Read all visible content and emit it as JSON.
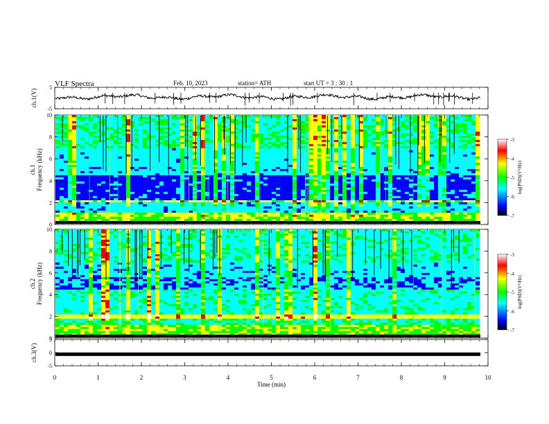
{
  "header": {
    "title": "VLF  Spectra",
    "date": "Feb. 10, 2023",
    "station": "station= ATH",
    "start": "start  UT  =   3  : 30 : 1"
  },
  "chart_data": [
    {
      "type": "line",
      "name": "ch1-waveform",
      "ylabel": "ch.1(V)",
      "ylim": [
        -5,
        5
      ],
      "yticks": [
        "5",
        "-5"
      ],
      "xlim": [
        0,
        10
      ],
      "approx_level": 0.5
    },
    {
      "type": "heatmap",
      "name": "ch1-spectrogram",
      "ylabel": "ch.1 Frequency (kHz)",
      "ylim": [
        0,
        10
      ],
      "yticks": [
        "0",
        "2",
        "4",
        "6",
        "8",
        "10"
      ],
      "xlim": [
        0,
        10
      ],
      "colorbar": {
        "label": "log(PSD)(V²/Hz)",
        "ticks": [
          "-3",
          "-4",
          "-5",
          "-6",
          "-7"
        ],
        "range": [
          -7,
          -3
        ]
      }
    },
    {
      "type": "heatmap",
      "name": "ch2-spectrogram",
      "ylabel": "ch.2 Frequency (kHz)",
      "ylim": [
        0,
        10
      ],
      "yticks": [
        "0",
        "2",
        "4",
        "6",
        "8",
        "10"
      ],
      "xlim": [
        0,
        10
      ],
      "colorbar": {
        "label": "log(PSD)(V²/Hz)",
        "ticks": [
          "-3",
          "-4",
          "-5",
          "-6",
          "-7"
        ],
        "range": [
          -7,
          -3
        ]
      }
    },
    {
      "type": "line",
      "name": "ch3-waveform",
      "ylabel": "ch.3(V)",
      "ylim": [
        -5,
        5
      ],
      "yticks": [
        "5",
        "0",
        "-5"
      ],
      "xlim": [
        0,
        10
      ],
      "xlabel": "Time  (min)",
      "xticks": [
        "0",
        "1",
        "2",
        "3",
        "4",
        "5",
        "6",
        "7",
        "8",
        "9",
        "10"
      ],
      "approx_level": -0.6
    }
  ],
  "colors": {
    "colormap": [
      "#000000",
      "#0000ff",
      "#00ffff",
      "#00ff00",
      "#ffff00",
      "#ff0000",
      "#ffffff"
    ]
  }
}
